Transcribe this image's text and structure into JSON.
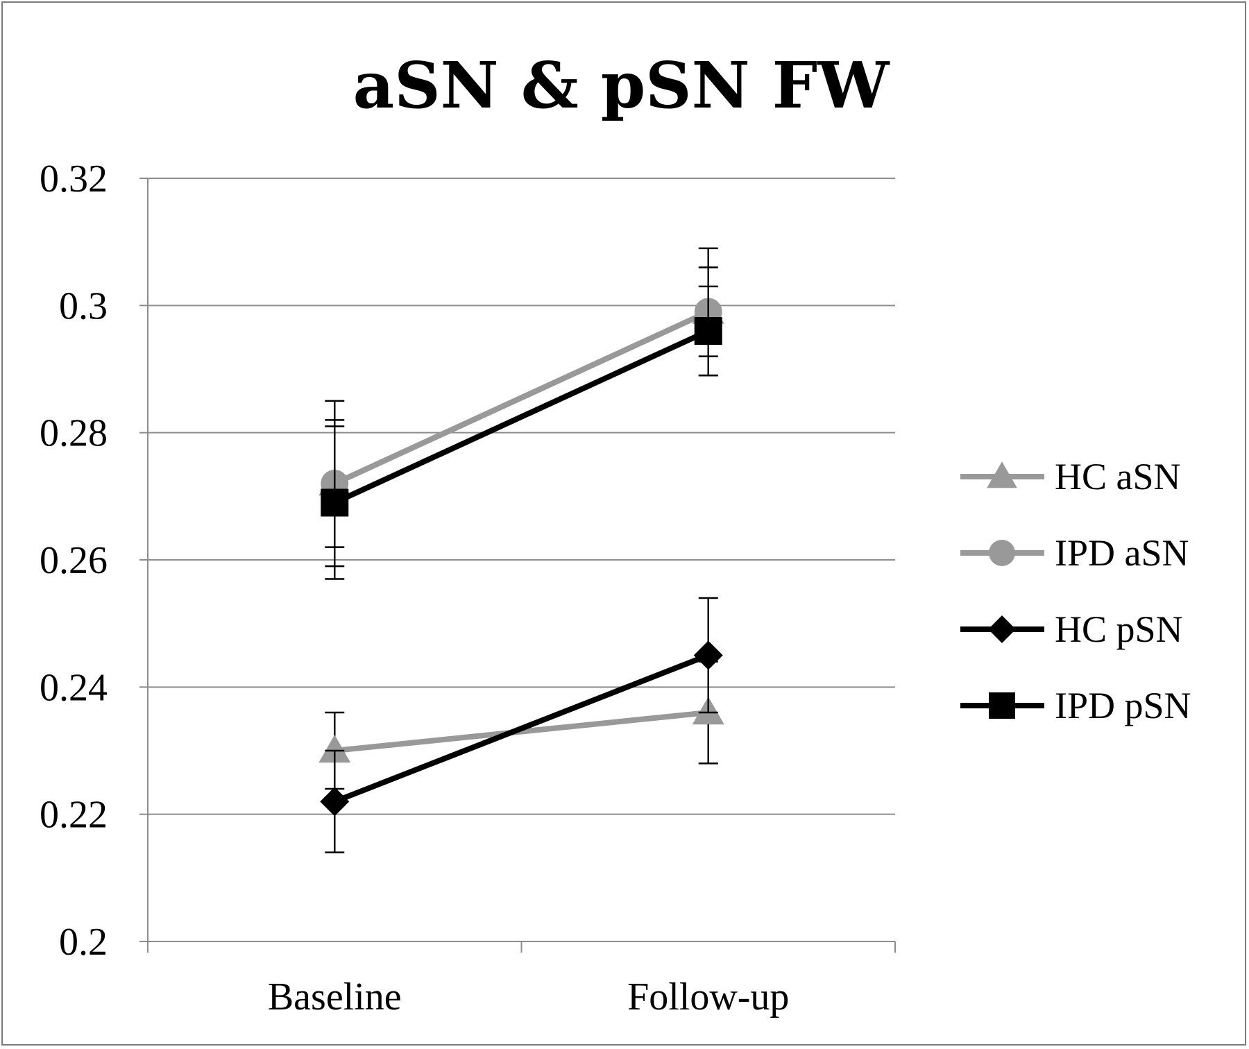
{
  "chart_data": {
    "type": "line",
    "title": "aSN & pSN FW",
    "xlabel": "",
    "ylabel": "",
    "categories": [
      "Baseline",
      "Follow-up"
    ],
    "ylim": [
      0.2,
      0.32
    ],
    "yticks": [
      "0.2",
      "0.22",
      "0.24",
      "0.26",
      "0.28",
      "0.3",
      "0.32"
    ],
    "grid": "horizontal",
    "legend_position": "right",
    "series": [
      {
        "name": "HC aSN",
        "values": [
          0.272,
          0.299
        ],
        "error": [
          0.01,
          0.007
        ],
        "color": "#999999",
        "marker": "triangle"
      },
      {
        "name": "IPD aSN",
        "values": [
          0.272,
          0.299
        ],
        "error": [
          0.013,
          0.01
        ],
        "color": "#999999",
        "marker": "circle"
      },
      {
        "name": "HC pSN",
        "values": [
          0.222,
          0.245
        ],
        "error": [
          0.008,
          0.009
        ],
        "color": "#000000",
        "marker": "diamond"
      },
      {
        "name": "IPD pSN",
        "values": [
          0.269,
          0.296
        ],
        "error": [
          0.012,
          0.007
        ],
        "color": "#000000",
        "marker": "square"
      }
    ],
    "lower_hc_asn": {
      "name": "HC aSN",
      "values": [
        0.23,
        0.236
      ],
      "error": [
        0.006,
        0.008
      ],
      "color": "#999999",
      "marker": "triangle"
    }
  }
}
